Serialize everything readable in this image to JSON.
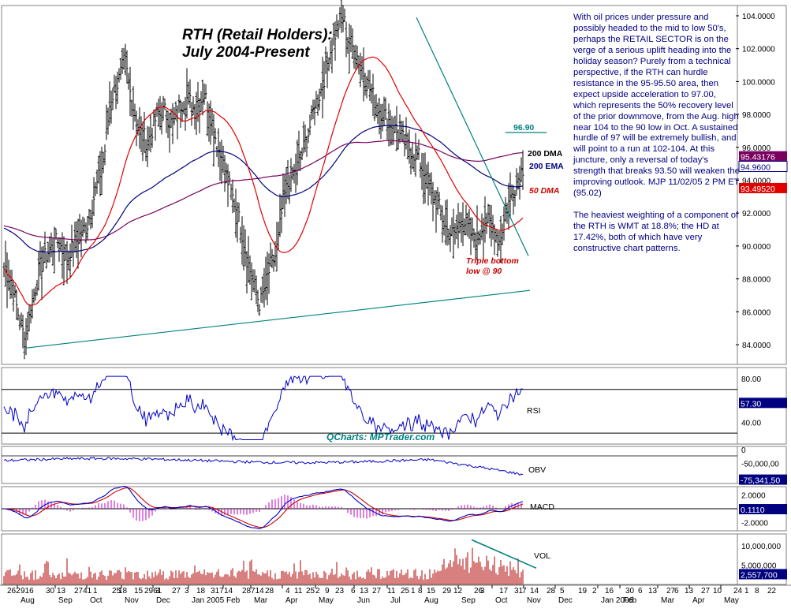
{
  "title_line1": "RTH (Retail Holders):",
  "title_line2": "July 2004-Present",
  "watermark": "QCharts: MPTrader.com",
  "commentary": {
    "para1": "With oil prices under pressure and possibly headed to the mid to low 50's, perhaps the RETAIL SECTOR is on the verge of a serious uplift heading into the holiday season? Purely from a technical perspective, if the RTH can hurdle resistance in the 95-95.50 area, then expect upside acceleration to 97.00, which represents the 50% recovery level of the prior downmove, from the Aug. high near 104 to the 90 low in Oct. A sustained hurdle of 97 will be extremely bullish, and will point to a run at 102-104. At this juncture, only a reversal of today's strength that breaks 93.50 will weaken the improving outlook. MJP 11/02/05  2 PM ET (95.02)",
    "para2": "The heaviest weighting of a component of the RTH is WMT at 18.8%; the HD at 17.42%, both of which have very constructive chart patterns."
  },
  "colors": {
    "price_bars": "#000000",
    "ma50": "#e00000",
    "dma200": "#7a0060",
    "ema200": "#000080",
    "trendline": "#008080",
    "annotation_red": "#cc0000",
    "tag_purple": "#7a0060",
    "tag_navy": "#000080",
    "tag_red": "#e00000",
    "rsi": "#0000c8",
    "obv": "#0000c8",
    "macd": "#0000c8",
    "signal": "#cc0000",
    "histogram": "#c000c0",
    "volume": "#b00000"
  },
  "chart_data": [
    {
      "type": "line",
      "panel": "price",
      "y_ticks": [
        "104.0000",
        "102.0000",
        "100.0000",
        "98.0000",
        "96.0000",
        "94.0000",
        "92.0000",
        "90.0000",
        "88.0000",
        "86.0000",
        "84.0000"
      ],
      "ylim": [
        83.0,
        104.6
      ],
      "series": [
        {
          "name": "RTH",
          "style": "ohlc-bars"
        },
        {
          "name": "50 DMA"
        },
        {
          "name": "200 DMA"
        },
        {
          "name": "200 EMA"
        }
      ],
      "labels": {
        "dma200": "200 DMA",
        "ema200": "200 EMA",
        "dma50": "50 DMA"
      },
      "value_tags": {
        "dma200": "95.43176",
        "ema200": "94.9600",
        "dma50": "93.49520"
      },
      "annotations": {
        "target": "96.90",
        "triple_bottom_1": "Triple bottom",
        "triple_bottom_2": "low @ 90"
      },
      "key_points": {
        "low_2004_aug": 83.8,
        "high_2005_aug": 103.9,
        "low_2005_apr": 86.0,
        "low_2005_oct": 90.0,
        "last_close": 95.02,
        "target": 96.9
      }
    },
    {
      "type": "line",
      "panel": "RSI",
      "label": "RSI",
      "y_ticks": [
        "80.00",
        "40.00"
      ],
      "ylim": [
        20,
        90
      ],
      "value_tag": "57.30",
      "series": [
        {
          "name": "RSI"
        }
      ]
    },
    {
      "type": "line",
      "panel": "OBV",
      "label": "OBV",
      "y_ticks": [
        "0",
        "-50,000,00"
      ],
      "value_tag": "-75,341,50",
      "series": [
        {
          "name": "OBV"
        }
      ]
    },
    {
      "type": "line",
      "panel": "MACD",
      "label": "MACD",
      "y_ticks": [
        "2.0000",
        "-2.0000"
      ],
      "ylim": [
        -3.2,
        3.2
      ],
      "value_tag": "0.1110",
      "series": [
        {
          "name": "MACD"
        },
        {
          "name": "Signal"
        },
        {
          "name": "Histogram"
        }
      ]
    },
    {
      "type": "bar",
      "panel": "VOL",
      "label": "VOL",
      "y_ticks": [
        "10,000,000",
        "5,000,000"
      ],
      "ylim": [
        0,
        13000000
      ],
      "value_tag": "2,557,700"
    }
  ],
  "x_axis": {
    "day_labels": [
      "262",
      "916",
      "30",
      "13",
      "2741",
      "1",
      "25",
      "18",
      "15",
      "2961",
      "3",
      "27",
      "3",
      "18",
      "317",
      "14",
      "28",
      "714",
      "28",
      "4",
      "11",
      "25",
      "2",
      "9",
      "23",
      "6",
      "13",
      "27",
      "11",
      "25",
      "1",
      "8",
      "15",
      "29",
      "12",
      "26",
      "3",
      "17",
      "31",
      "7",
      "14",
      "28",
      "5",
      "19",
      "2",
      "16",
      "30",
      "6",
      "13",
      "27",
      "6",
      "13",
      "27",
      "10",
      "24",
      "1",
      "8",
      "22"
    ],
    "month_labels": [
      "Aug",
      "Sep",
      "Oct",
      "Nov",
      "Dec",
      "Jan 2005",
      "Feb",
      "Mar",
      "Apr",
      "May",
      "Jun",
      "Jul",
      "Aug",
      "Sep",
      "Oct",
      "Nov",
      "Dec",
      "Jan 2006",
      "Feb",
      "Mar",
      "Apr",
      "May"
    ]
  }
}
